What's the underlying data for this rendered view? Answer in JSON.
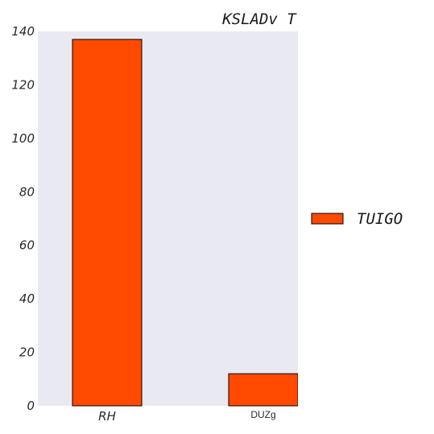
{
  "chart_data": {
    "type": "bar",
    "title": "KSLADv T",
    "categories": [
      "RH",
      "DUZg"
    ],
    "series": [
      {
        "name": "TUIGO",
        "values": [
          137,
          12
        ]
      }
    ],
    "ylim": [
      0,
      140
    ],
    "yticks": [
      0,
      20,
      40,
      60,
      80,
      100,
      120,
      140
    ],
    "grid": false,
    "legend_position": "right",
    "colors": {
      "bar": "#ff4a00",
      "plot_background": "#e9e9f1"
    }
  }
}
